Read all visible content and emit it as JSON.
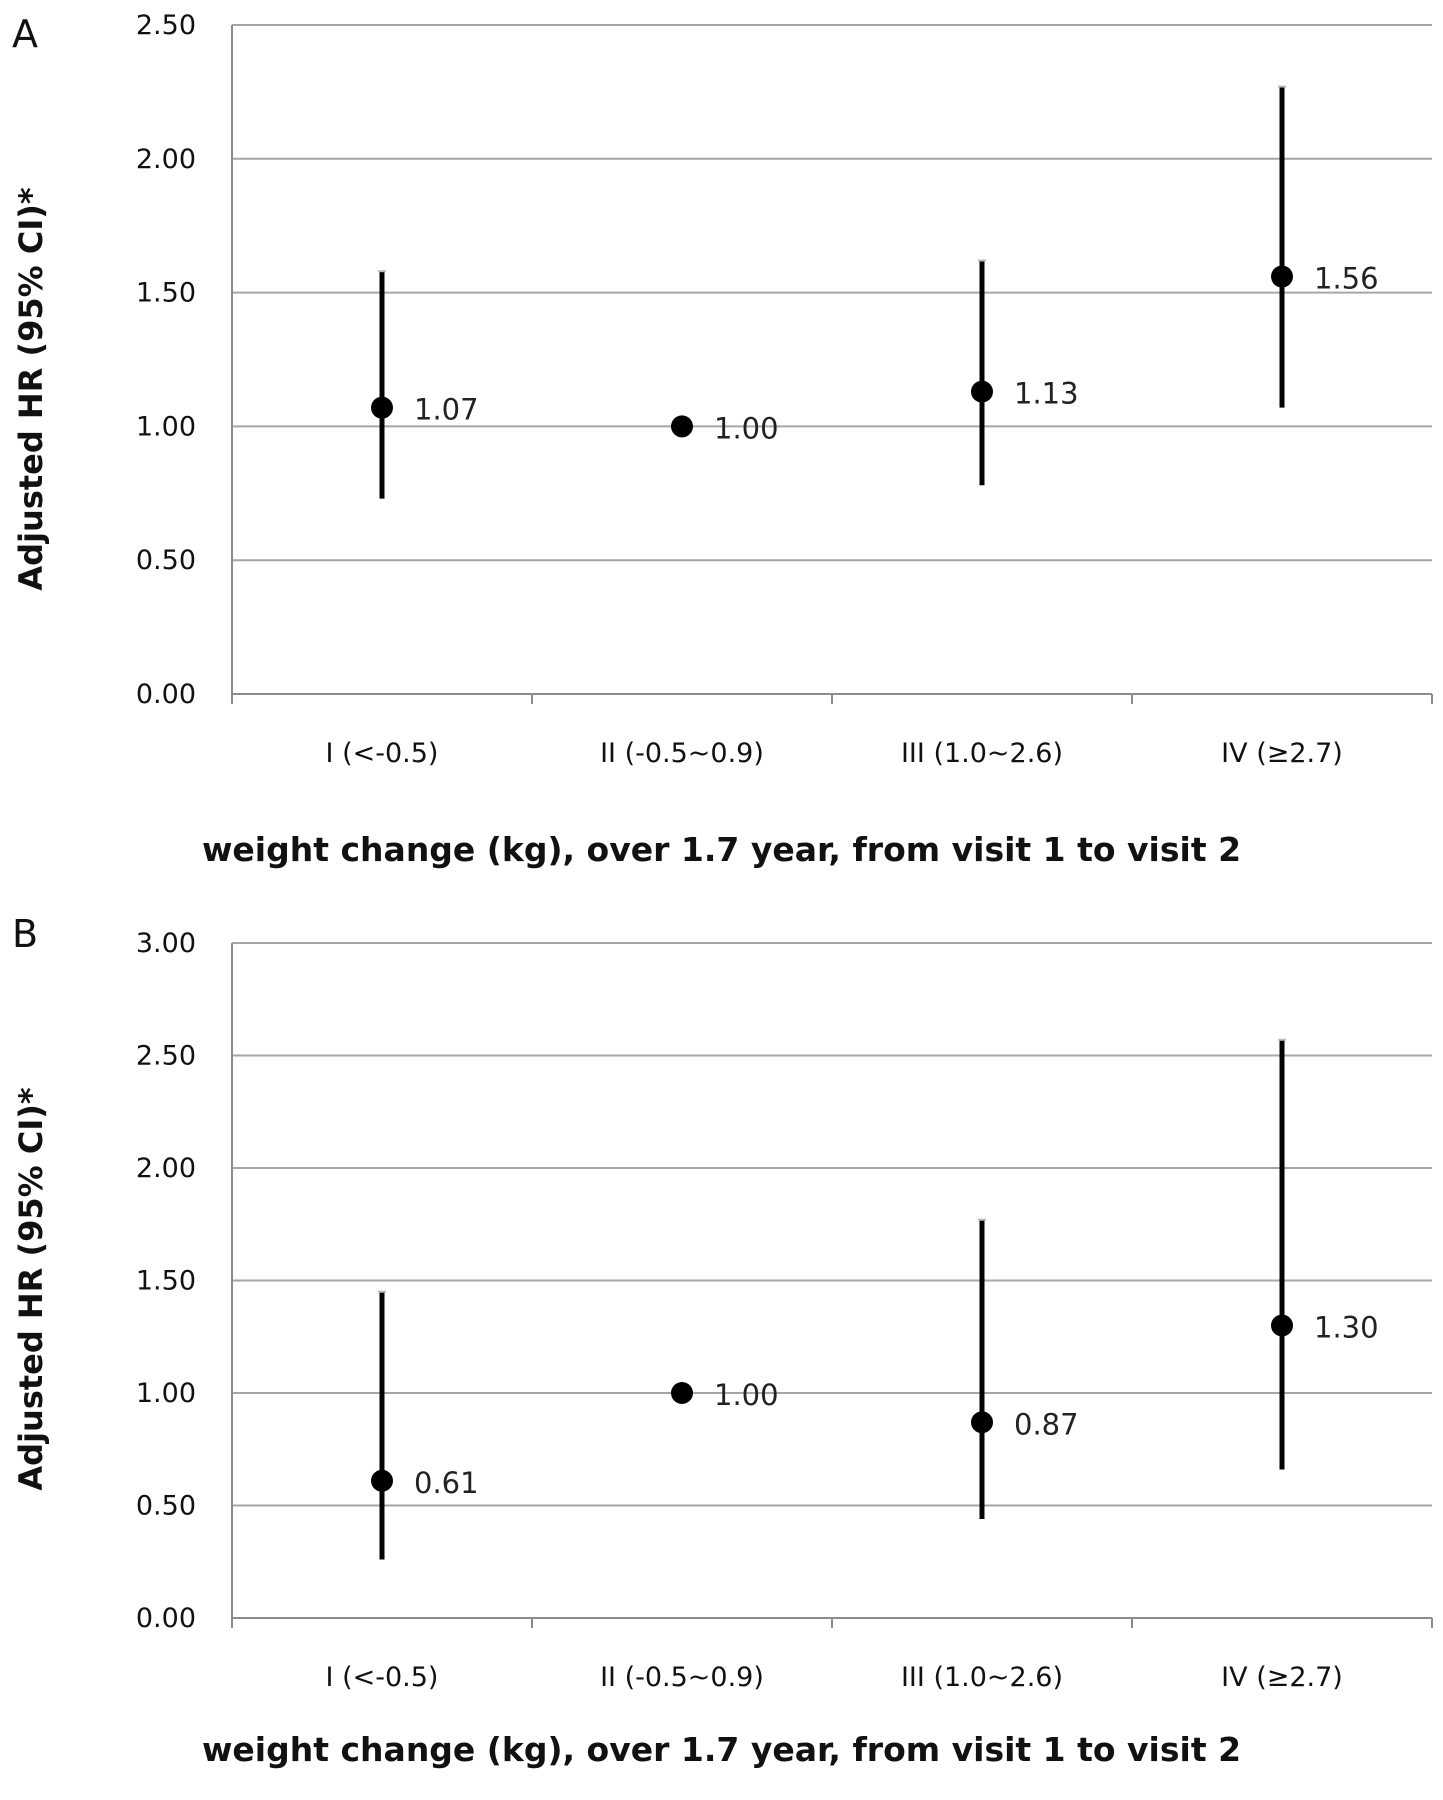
{
  "chart_data": [
    {
      "panel": "A",
      "type": "scatter",
      "ylabel": "Adjusted HR (95% CI)*",
      "xlabel": "weight change (kg), over 1.7 year, from visit 1 to visit 2",
      "ylim": [
        0,
        2.5
      ],
      "yticks": [
        "0.00",
        "0.50",
        "1.00",
        "1.50",
        "2.00",
        "2.50"
      ],
      "categories": [
        "I (<-0.5)",
        "II (-0.5~0.9)",
        "III (1.0~2.6)",
        "IV (≥2.7)"
      ],
      "values": [
        1.07,
        1.0,
        1.13,
        1.56
      ],
      "ci_lower": [
        0.73,
        null,
        0.78,
        1.07
      ],
      "ci_upper": [
        1.58,
        null,
        1.62,
        2.27
      ],
      "data_labels": [
        "1.07",
        "1.00",
        "1.13",
        "1.56"
      ],
      "grid": true
    },
    {
      "panel": "B",
      "type": "scatter",
      "ylabel": "Adjusted HR (95% CI)*",
      "xlabel": "weight change (kg), over 1.7 year, from visit 1 to visit 2",
      "ylim": [
        0,
        3
      ],
      "yticks": [
        "0.00",
        "0.50",
        "1.00",
        "1.50",
        "2.00",
        "2.50",
        "3.00"
      ],
      "categories": [
        "I (<-0.5)",
        "II (-0.5~0.9)",
        "III (1.0~2.6)",
        "IV (≥2.7)"
      ],
      "values": [
        0.61,
        1.0,
        0.87,
        1.3
      ],
      "ci_lower": [
        0.26,
        null,
        0.44,
        0.66
      ],
      "ci_upper": [
        1.45,
        null,
        1.77,
        2.57
      ],
      "data_labels": [
        "0.61",
        "1.00",
        "0.87",
        "1.30"
      ],
      "grid": true
    }
  ]
}
